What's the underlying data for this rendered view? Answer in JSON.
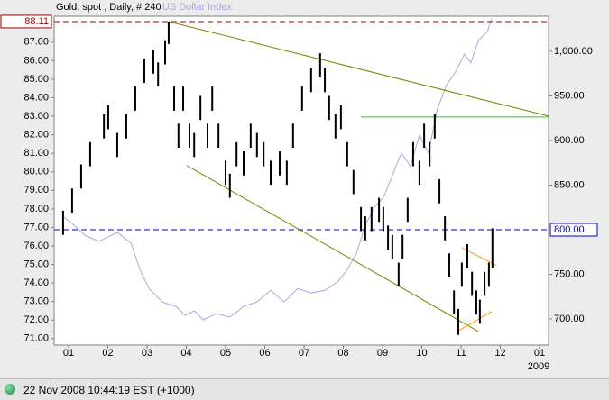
{
  "chart_data": {
    "type": "hl-bars",
    "title": "Gold, spot , Daily, # 240",
    "xlim": [
      0.632,
      13.23
    ],
    "xticks": [
      {
        "value": 1,
        "label": "01"
      },
      {
        "value": 2,
        "label": "02"
      },
      {
        "value": 3,
        "label": "03"
      },
      {
        "value": 4,
        "label": "04"
      },
      {
        "value": 5,
        "label": "05"
      },
      {
        "value": 6,
        "label": "06"
      },
      {
        "value": 7,
        "label": "07"
      },
      {
        "value": 8,
        "label": "08"
      },
      {
        "value": 9,
        "label": "09"
      },
      {
        "value": 10,
        "label": "10"
      },
      {
        "value": 11,
        "label": "11"
      },
      {
        "value": 12,
        "label": "12"
      },
      {
        "value": 13,
        "label": "01"
      }
    ],
    "year_label": "2009",
    "ylim": [
      70.65,
      88.4
    ],
    "yticks": [
      {
        "value": 71,
        "label": "71.00"
      },
      {
        "value": 72,
        "label": "72.00"
      },
      {
        "value": 73,
        "label": "73.00"
      },
      {
        "value": 74,
        "label": "74.00"
      },
      {
        "value": 75,
        "label": "75.00"
      },
      {
        "value": 76,
        "label": "76.00"
      },
      {
        "value": 77,
        "label": "77.00"
      },
      {
        "value": 78,
        "label": "78.00"
      },
      {
        "value": 79,
        "label": "79.00"
      },
      {
        "value": 80,
        "label": "80.00"
      },
      {
        "value": 81,
        "label": "81.00"
      },
      {
        "value": 82,
        "label": "82.00"
      },
      {
        "value": 83,
        "label": "83.00"
      },
      {
        "value": 84,
        "label": "84.00"
      },
      {
        "value": 85,
        "label": "85.00"
      },
      {
        "value": 86,
        "label": "86.00"
      },
      {
        "value": 87,
        "label": "87.00"
      }
    ],
    "y2lim": [
      670.7,
      1039.4
    ],
    "y2ticks": [
      {
        "value": 700,
        "label": "700.00"
      },
      {
        "value": 750,
        "label": "750.00"
      },
      {
        "value": 850,
        "label": "850.00"
      },
      {
        "value": 900,
        "label": "900.00"
      },
      {
        "value": 950,
        "label": "950.00"
      },
      {
        "value": 1000,
        "label": "1,000.00"
      }
    ],
    "hlines": [
      {
        "value": 88.11,
        "label": "88.11",
        "color": "#990000"
      },
      {
        "value": 800,
        "label": "800.00",
        "axis": "y2",
        "color": "#0000cc"
      }
    ],
    "series": [
      {
        "color": "#000000",
        "x": [
          0.86,
          1.09,
          1.32,
          1.55,
          1.9,
          2.01,
          2.24,
          2.47,
          2.7,
          2.93,
          3.16,
          3.28,
          3.46,
          3.55,
          3.69,
          3.8,
          3.92,
          4.08,
          4.2,
          4.36,
          4.54,
          4.66,
          4.82,
          5.0,
          5.11,
          5.28,
          5.46,
          5.64,
          5.8,
          5.97,
          6.15,
          6.38,
          6.56,
          6.72,
          6.95,
          7.18,
          7.41,
          7.53,
          7.64,
          7.8,
          7.94,
          8.1,
          8.26,
          8.45,
          8.56,
          8.72,
          8.91,
          9.02,
          9.14,
          9.25,
          9.41,
          9.51,
          9.64,
          9.78,
          9.94,
          10.06,
          10.2,
          10.33,
          10.45,
          10.59,
          10.7,
          10.82,
          10.93,
          11.02,
          11.16,
          11.28,
          11.39,
          11.48,
          11.6,
          11.71,
          11.8
        ],
        "high": [
          77.9,
          79.1,
          80.4,
          81.6,
          83.1,
          83.6,
          82.1,
          83.1,
          84.6,
          86.1,
          86.6,
          85.9,
          87.1,
          88.11,
          84.6,
          82.6,
          84.6,
          82.6,
          82.1,
          84.1,
          82.6,
          84.6,
          82.6,
          80.6,
          79.9,
          81.6,
          81.1,
          82.6,
          82.1,
          81.6,
          80.6,
          81.1,
          80.6,
          82.6,
          84.6,
          85.6,
          86.4,
          85.6,
          84.1,
          83.1,
          83.6,
          81.6,
          80.1,
          78.1,
          77.6,
          78.1,
          78.6,
          78.1,
          77.1,
          76.6,
          75.1,
          76.6,
          78.6,
          81.6,
          80.6,
          82.6,
          81.6,
          83.1,
          79.6,
          77.6,
          75.6,
          73.6,
          72.6,
          75.1,
          76.1,
          74.6,
          73.6,
          73.1,
          74.6,
          75.1,
          76.95
        ],
        "low": [
          76.6,
          77.8,
          79.1,
          80.3,
          81.8,
          82.3,
          80.8,
          81.8,
          83.3,
          84.8,
          85.3,
          84.6,
          85.8,
          86.9,
          83.3,
          81.3,
          83.3,
          81.3,
          80.8,
          82.8,
          81.3,
          83.3,
          81.3,
          79.3,
          78.6,
          80.3,
          79.8,
          81.3,
          80.8,
          80.3,
          79.3,
          79.8,
          79.3,
          81.3,
          83.3,
          84.3,
          85.1,
          84.3,
          82.8,
          81.8,
          82.3,
          80.3,
          78.8,
          76.8,
          76.3,
          76.8,
          77.3,
          76.8,
          75.8,
          75.3,
          73.8,
          75.3,
          77.3,
          80.3,
          79.3,
          81.3,
          80.3,
          81.8,
          78.3,
          76.3,
          74.3,
          72.3,
          71.2,
          73.8,
          74.8,
          73.3,
          72.3,
          71.8,
          73.3,
          73.8,
          74.8
        ]
      },
      {
        "name": "US Dollar Index",
        "color": "#a8a8e0",
        "axis": "y2",
        "x": [
          0.86,
          1.09,
          1.44,
          1.78,
          2.24,
          2.59,
          2.82,
          3.05,
          3.39,
          3.74,
          3.97,
          4.2,
          4.43,
          4.77,
          5.11,
          5.46,
          5.8,
          6.15,
          6.49,
          6.84,
          7.18,
          7.53,
          7.87,
          8.1,
          8.33,
          8.56,
          8.79,
          9.02,
          9.25,
          9.48,
          9.71,
          9.94,
          10.17,
          10.4,
          10.63,
          10.86,
          11.09,
          11.25,
          11.44,
          11.67,
          11.78
        ],
        "values": [
          815,
          807,
          793,
          787,
          797,
          785,
          755,
          734,
          719,
          714,
          704,
          709,
          699,
          706,
          702,
          714,
          719,
          732,
          719,
          734,
          729,
          732,
          742,
          755,
          773,
          805,
          825,
          836,
          861,
          886,
          871,
          906,
          886,
          936,
          962,
          977,
          997,
          987,
          1012,
          1022,
          1037
        ]
      }
    ],
    "trendlines": [
      {
        "x": [
          3.55,
          13.23
        ],
        "y": [
          88.11,
          83.01
        ],
        "color": "#808000"
      },
      {
        "x": [
          4.01,
          11.44
        ],
        "y": [
          80.34,
          71.39
        ],
        "color": "#808000"
      },
      {
        "x": [
          8.45,
          13.23
        ],
        "y": [
          82.96,
          82.96
        ],
        "color": "#22cc22"
      },
      {
        "x": [
          11.02,
          11.9
        ],
        "y": [
          75.91,
          74.94
        ],
        "color": "#ff9900"
      },
      {
        "x": [
          10.91,
          11.78
        ],
        "y": [
          71.39,
          72.46
        ],
        "color": "#ff9900"
      }
    ]
  },
  "status": {
    "timestamp": "22 Nov 2008 10:44:19 EST (+1000)"
  }
}
